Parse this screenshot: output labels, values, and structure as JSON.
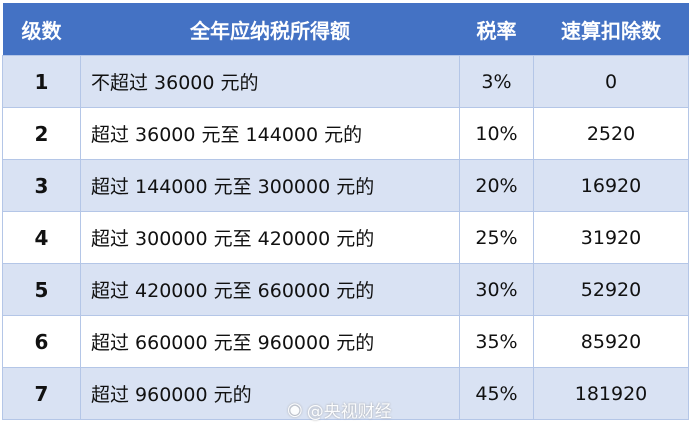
{
  "headers": [
    "级数",
    "全年应纳税所得额",
    "税率",
    "速算扣除数"
  ],
  "rows": [
    {
      "level": "1",
      "range": "不超过 36000 元的",
      "rate": "3%",
      "deduction": "0"
    },
    {
      "level": "2",
      "range": "超过 36000 元至 144000 元的",
      "rate": "10%",
      "deduction": "2520"
    },
    {
      "level": "3",
      "range": "超过 144000 元至 300000 元的",
      "rate": "20%",
      "deduction": "16920"
    },
    {
      "level": "4",
      "range": "超过 300000 元至 420000 元的",
      "rate": "25%",
      "deduction": "31920"
    },
    {
      "level": "5",
      "range": "超过 420000 元至 660000 元的",
      "rate": "30%",
      "deduction": "52920"
    },
    {
      "level": "6",
      "range": "超过 660000 元至 960000 元的",
      "rate": "35%",
      "deduction": "85920"
    },
    {
      "level": "7",
      "range": "超过 960000 元的",
      "rate": "45%",
      "deduction": "181920"
    }
  ],
  "watermark": {
    "icon": "weibo-icon",
    "text": "@央视财经"
  },
  "colors": {
    "header": "#4472c4",
    "row_alt": "#d9e2f3",
    "border": "#b4c6e7"
  }
}
